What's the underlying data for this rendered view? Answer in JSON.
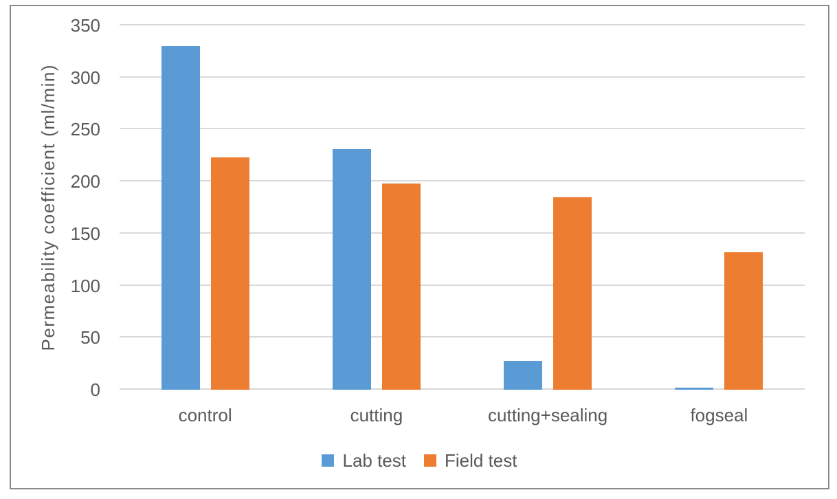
{
  "chart_data": {
    "type": "bar",
    "title": "",
    "ylabel": "Permeability coefficient (ml/min)",
    "xlabel": "",
    "categories": [
      "control",
      "cutting",
      "cutting+sealing",
      "fogseal"
    ],
    "series": [
      {
        "name": "Lab test",
        "color": "#5B9BD5",
        "values": [
          330,
          231,
          28,
          2
        ]
      },
      {
        "name": "Field test",
        "color": "#ED7D31",
        "values": [
          223,
          198,
          185,
          132
        ]
      }
    ],
    "ylim": [
      0,
      350
    ],
    "yticks": [
      0,
      50,
      100,
      150,
      200,
      250,
      300,
      350
    ],
    "grid": true,
    "legend_position": "bottom-center"
  },
  "styles": {
    "text_color": "#595959",
    "gridline_color": "#D9D9D9",
    "border_color": "#8A8A8A",
    "background": "#FFFFFF",
    "series_colors": {
      "lab_test": "#5B9BD5",
      "field_test": "#ED7D31"
    }
  }
}
